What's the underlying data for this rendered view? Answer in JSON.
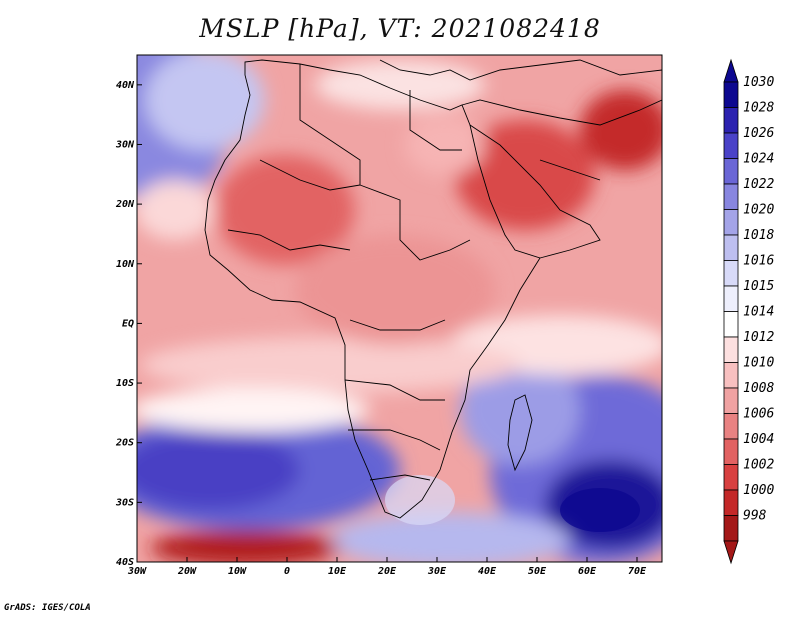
{
  "title": "MSLP [hPa], VT: 2021082418",
  "footer": "GrADS: IGES/COLA",
  "map": {
    "lon_range": [
      -30,
      75
    ],
    "lat_range": [
      -40,
      45
    ],
    "lon_ticks": [
      {
        "lon": -30,
        "label": "30W"
      },
      {
        "lon": -20,
        "label": "20W"
      },
      {
        "lon": -10,
        "label": "10W"
      },
      {
        "lon": 0,
        "label": "0"
      },
      {
        "lon": 10,
        "label": "10E"
      },
      {
        "lon": 20,
        "label": "20E"
      },
      {
        "lon": 30,
        "label": "30E"
      },
      {
        "lon": 40,
        "label": "40E"
      },
      {
        "lon": 50,
        "label": "50E"
      },
      {
        "lon": 60,
        "label": "60E"
      },
      {
        "lon": 70,
        "label": "70E"
      }
    ],
    "lat_ticks": [
      {
        "lat": 40,
        "label": "40N"
      },
      {
        "lat": 30,
        "label": "30N"
      },
      {
        "lat": 20,
        "label": "20N"
      },
      {
        "lat": 10,
        "label": "10N"
      },
      {
        "lat": 0,
        "label": "EQ"
      },
      {
        "lat": -10,
        "label": "10S"
      },
      {
        "lat": -20,
        "label": "20S"
      },
      {
        "lat": -30,
        "label": "30S"
      },
      {
        "lat": -40,
        "label": "40S"
      }
    ]
  },
  "colorbar": {
    "levels": [
      "1030",
      "1028",
      "1026",
      "1024",
      "1022",
      "1020",
      "1018",
      "1016",
      "1015",
      "1014",
      "1012",
      "1010",
      "1008",
      "1006",
      "1004",
      "1002",
      "1000",
      "998"
    ],
    "colors": [
      "#0d0890",
      "#2c22b0",
      "#4a42c8",
      "#6a66d6",
      "#8886e0",
      "#a4a4e8",
      "#bebff0",
      "#d8daf8",
      "#eeeffc",
      "#ffffff",
      "#fde0e0",
      "#f8c0c0",
      "#f0a2a2",
      "#e98282",
      "#e26262",
      "#d84040",
      "#c42828",
      "#a41818"
    ]
  }
}
